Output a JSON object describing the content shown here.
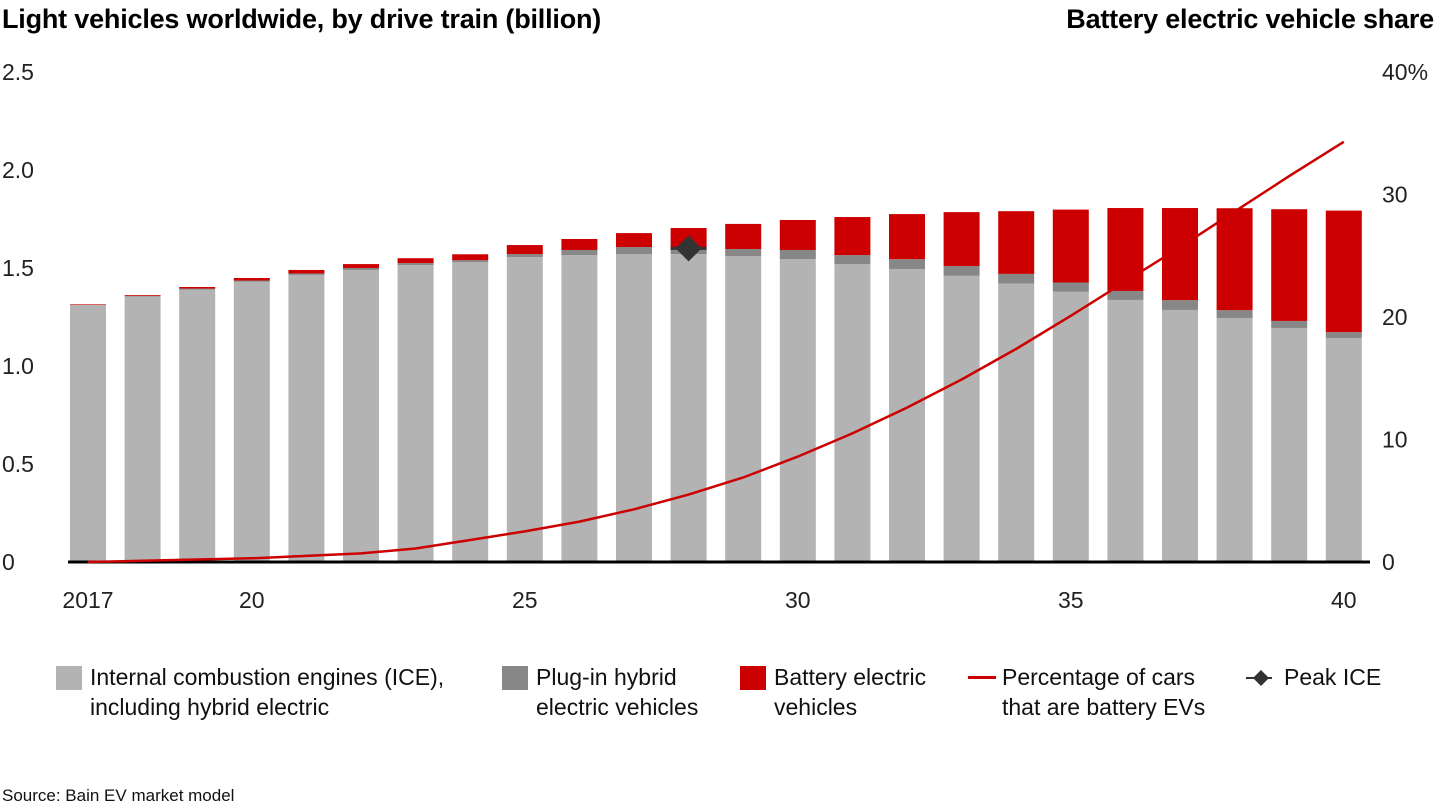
{
  "chart_data": {
    "type": "bar",
    "stacked": true,
    "title_left": "Light vehicles worldwide, by drive train (billion)",
    "title_right": "Battery electric vehicle share",
    "x": [
      2017,
      2018,
      2019,
      2020,
      2021,
      2022,
      2023,
      2024,
      2025,
      2026,
      2027,
      2028,
      2029,
      2030,
      2031,
      2032,
      2033,
      2034,
      2035,
      2036,
      2037,
      2038,
      2039,
      2040
    ],
    "x_tick_labels": [
      {
        "year": 2017,
        "label": "2017"
      },
      {
        "year": 2020,
        "label": "20"
      },
      {
        "year": 2025,
        "label": "25"
      },
      {
        "year": 2030,
        "label": "30"
      },
      {
        "year": 2035,
        "label": "35"
      },
      {
        "year": 2040,
        "label": "40"
      }
    ],
    "y_left": {
      "label": "billion",
      "range": [
        0,
        2.5
      ],
      "ticks": [
        "0",
        "0.5",
        "1.0",
        "1.5",
        "2.0",
        "2.5"
      ],
      "tick_values": [
        0,
        0.5,
        1.0,
        1.5,
        2.0,
        2.5
      ]
    },
    "y_right": {
      "label": "Battery electric vehicle share (%)",
      "range": [
        0,
        40
      ],
      "ticks": [
        "0",
        "10",
        "20",
        "30",
        "40%"
      ],
      "tick_values": [
        0,
        10,
        20,
        30,
        40
      ]
    },
    "grid": false,
    "series": [
      {
        "name": "Internal combustion engines (ICE), including hybrid electric",
        "type": "bar",
        "axis": "left",
        "color": "#b3b3b3",
        "values": [
          1.31,
          1.355,
          1.39,
          1.43,
          1.465,
          1.49,
          1.515,
          1.53,
          1.556,
          1.566,
          1.571,
          1.571,
          1.561,
          1.546,
          1.52,
          1.495,
          1.46,
          1.42,
          1.38,
          1.337,
          1.286,
          1.245,
          1.194,
          1.143
        ]
      },
      {
        "name": "Plug-in hybrid electric vehicles",
        "type": "bar",
        "axis": "left",
        "color": "#878787",
        "values": [
          0.002,
          0.003,
          0.005,
          0.006,
          0.007,
          0.01,
          0.01,
          0.01,
          0.015,
          0.026,
          0.036,
          0.031,
          0.036,
          0.046,
          0.046,
          0.05,
          0.05,
          0.05,
          0.046,
          0.046,
          0.05,
          0.04,
          0.036,
          0.03
        ]
      },
      {
        "name": "Battery electric vehicles",
        "type": "bar",
        "axis": "left",
        "color": "#cc0000",
        "values": [
          0.003,
          0.004,
          0.008,
          0.013,
          0.018,
          0.02,
          0.025,
          0.03,
          0.046,
          0.056,
          0.071,
          0.102,
          0.128,
          0.153,
          0.194,
          0.23,
          0.275,
          0.32,
          0.372,
          0.423,
          0.47,
          0.52,
          0.57,
          0.62
        ]
      },
      {
        "name": "Percentage of cars that are battery EVs",
        "type": "line",
        "axis": "right",
        "color": "#cc0000",
        "values": [
          0.0,
          0.1,
          0.2,
          0.3,
          0.5,
          0.7,
          1.1,
          1.8,
          2.5,
          3.3,
          4.3,
          5.5,
          6.9,
          8.6,
          10.5,
          12.6,
          14.9,
          17.4,
          20.1,
          22.9,
          25.7,
          28.6,
          31.5,
          34.3
        ]
      },
      {
        "name": "Peak ICE",
        "type": "marker",
        "axis": "left",
        "color": "#333333",
        "x": 2028,
        "y": 1.6
      }
    ],
    "legend": {
      "placement": "bottom",
      "items": [
        {
          "label": "Internal combustion engines (ICE),\nincluding hybrid electric",
          "kind": "box",
          "color": "#b3b3b3"
        },
        {
          "label": "Plug-in hybrid\nelectric vehicles",
          "kind": "box",
          "color": "#878787"
        },
        {
          "label": "Battery electric\nvehicles",
          "kind": "box",
          "color": "#cc0000"
        },
        {
          "label": "Percentage of cars\nthat are battery EVs",
          "kind": "line",
          "color": "#cc0000"
        },
        {
          "label": "Peak ICE",
          "kind": "diamond",
          "color": "#333333"
        }
      ]
    },
    "source": "Source: Bain EV market model"
  }
}
